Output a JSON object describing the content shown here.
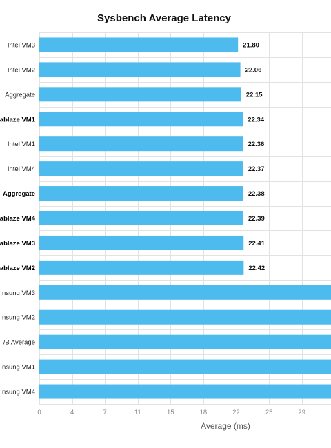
{
  "chart_data": {
    "type": "bar",
    "orientation": "horizontal",
    "title": "Sysbench Average Latency",
    "xlabel": "Average (ms)",
    "ylabel": "",
    "xlim": [
      0,
      32
    ],
    "grid": true,
    "bar_color": "#4dbbee",
    "ticks": [
      "0",
      "4",
      "7",
      "11",
      "15",
      "18",
      "22",
      "25",
      "29"
    ],
    "tick_values": [
      0,
      3.6,
      7.2,
      10.8,
      14.4,
      18,
      21.6,
      25.2,
      28.8
    ],
    "categories": [
      {
        "label": "Intel VM3",
        "value": 21.8,
        "value_label": "21.80",
        "bold": false
      },
      {
        "label": "Intel VM2",
        "value": 22.06,
        "value_label": "22.06",
        "bold": false
      },
      {
        "label": "Aggregate",
        "value": 22.15,
        "value_label": "22.15",
        "bold": false
      },
      {
        "label": "ablaze VM1",
        "value": 22.34,
        "value_label": "22.34",
        "bold": true
      },
      {
        "label": "Intel VM1",
        "value": 22.36,
        "value_label": "22.36",
        "bold": false
      },
      {
        "label": "Intel VM4",
        "value": 22.37,
        "value_label": "22.37",
        "bold": false
      },
      {
        "label": "Aggregate",
        "value": 22.38,
        "value_label": "22.38",
        "bold": true
      },
      {
        "label": "ablaze VM4",
        "value": 22.39,
        "value_label": "22.39",
        "bold": true
      },
      {
        "label": "ablaze VM3",
        "value": 22.41,
        "value_label": "22.41",
        "bold": true
      },
      {
        "label": "ablaze VM2",
        "value": 22.42,
        "value_label": "22.42",
        "bold": true
      },
      {
        "label": "nsung VM3",
        "value": 33,
        "value_label": "",
        "bold": false
      },
      {
        "label": "nsung VM2",
        "value": 33,
        "value_label": "",
        "bold": false
      },
      {
        "label": "/B Average",
        "value": 33,
        "value_label": "",
        "bold": false
      },
      {
        "label": "nsung VM1",
        "value": 33,
        "value_label": "",
        "bold": false
      },
      {
        "label": "nsung VM4",
        "value": 33,
        "value_label": "",
        "bold": false
      }
    ]
  }
}
